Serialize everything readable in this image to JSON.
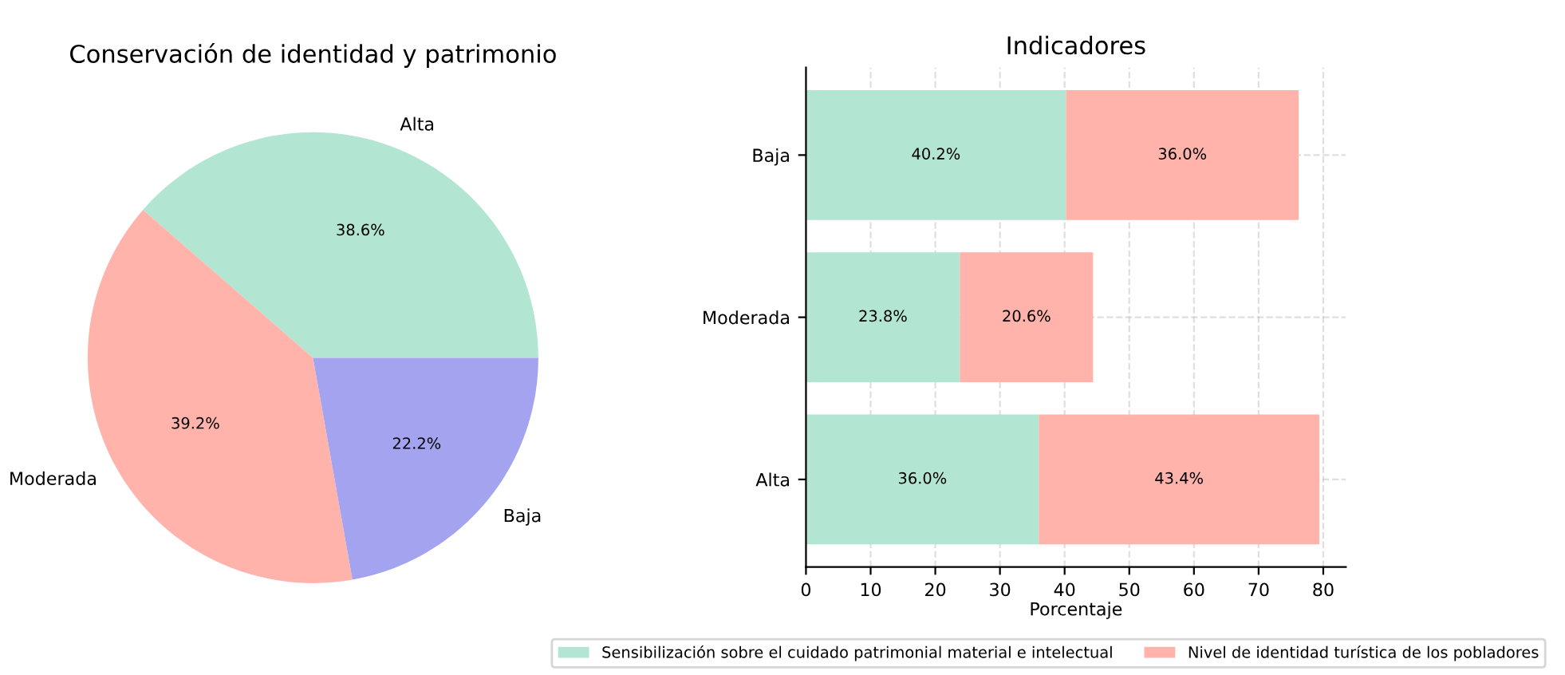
{
  "chart_data": [
    {
      "type": "pie",
      "title": "Conservación de identidad y patrimonio",
      "categories": [
        "Alta",
        "Moderada",
        "Baja"
      ],
      "values": [
        38.6,
        39.2,
        22.2
      ],
      "colors": [
        "#b3e6d2",
        "#ffb3ab",
        "#a3a3f0"
      ],
      "value_labels": [
        "38.6%",
        "39.2%",
        "22.2%"
      ]
    },
    {
      "type": "bar",
      "orientation": "horizontal",
      "stacked": true,
      "title": "Indicadores",
      "xlabel": "Porcentaje",
      "categories": [
        "Baja",
        "Moderada",
        "Alta"
      ],
      "series": [
        {
          "name": "Sensibilización sobre el cuidado patrimonial material e intelectual",
          "color": "#b3e6d2",
          "values": [
            40.2,
            23.8,
            36.0
          ],
          "value_labels": [
            "40.2%",
            "23.8%",
            "36.0%"
          ]
        },
        {
          "name": "Nivel de identidad turística de los pobladores",
          "color": "#ffb3ab",
          "values": [
            36.0,
            20.6,
            43.4
          ],
          "value_labels": [
            "36.0%",
            "20.6%",
            "43.4%"
          ]
        }
      ],
      "xlim": [
        0,
        83.5
      ],
      "xticks": [
        0,
        10,
        20,
        30,
        40,
        50,
        60,
        70,
        80
      ],
      "grid": true,
      "legend": "bottom"
    }
  ]
}
